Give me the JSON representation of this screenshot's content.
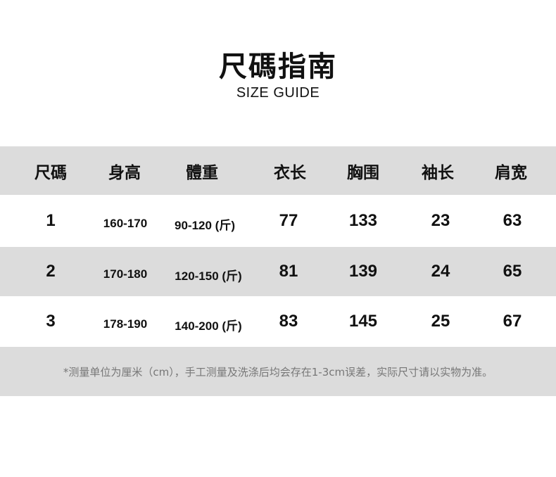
{
  "title": "尺碼指南",
  "subtitle": "SIZE GUIDE",
  "table": {
    "headers": [
      "尺碼",
      "身高",
      "體重",
      "衣长",
      "胸围",
      "袖长",
      "肩宽"
    ],
    "rows": [
      [
        "1",
        "160-170",
        "90-120 (斤)",
        "77",
        "133",
        "23",
        "63"
      ],
      [
        "2",
        "170-180",
        "120-150 (斤)",
        "81",
        "139",
        "24",
        "65"
      ],
      [
        "3",
        "178-190",
        "140-200 (斤)",
        "83",
        "145",
        "25",
        "67"
      ]
    ]
  },
  "note": "*测量单位为厘米（cm），手工测量及洗涤后均会存在1-3cm误差，实际尺寸请以实物为准。",
  "colors": {
    "band_gray": "#dcdcdc",
    "note_text": "#777777",
    "text": "#111111"
  }
}
